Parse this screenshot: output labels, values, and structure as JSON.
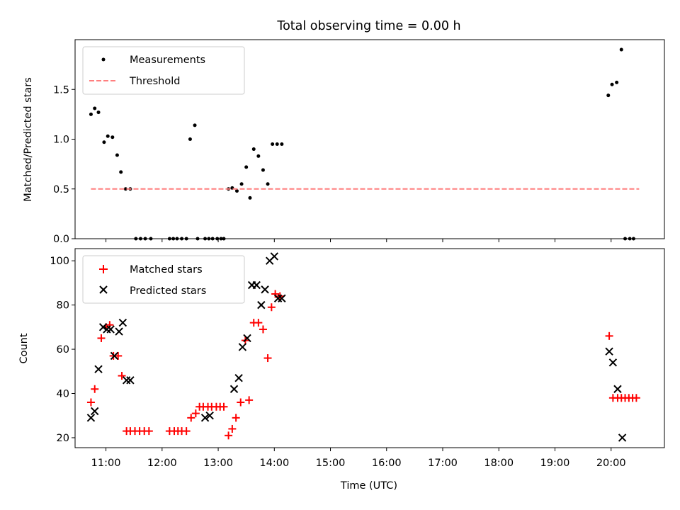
{
  "chart_data": [
    {
      "type": "scatter",
      "title": "Total observing time = 0.00 h",
      "ylabel": "Matched/Predicted stars",
      "xlabel": "",
      "xlim": [
        "10:27",
        "20:57"
      ],
      "ylim": [
        0,
        2.0
      ],
      "yticks": [
        0.0,
        0.5,
        1.0,
        1.5
      ],
      "ytick_labels": [
        "0.0",
        "0.5",
        "1.0",
        "1.5"
      ],
      "legend": "top-left",
      "grid": false,
      "series": [
        {
          "name": "Measurements",
          "kind": "scatter",
          "marker": "dot",
          "color": "#000000",
          "x": [
            "10:44",
            "10:48",
            "10:52",
            "10:58",
            "11:02",
            "11:07",
            "11:12",
            "11:16",
            "11:21",
            "11:26",
            "11:32",
            "11:37",
            "11:42",
            "11:48",
            "12:08",
            "12:12",
            "12:16",
            "12:21",
            "12:26",
            "12:30",
            "12:35",
            "12:38",
            "12:46",
            "12:50",
            "12:54",
            "12:59",
            "13:03",
            "13:06",
            "13:11",
            "13:15",
            "13:20",
            "13:25",
            "13:30",
            "13:34",
            "13:38",
            "13:43",
            "13:48",
            "13:53",
            "13:58",
            "14:03",
            "14:08",
            "19:57",
            "20:01",
            "20:06",
            "20:11",
            "20:15",
            "20:20",
            "20:24"
          ],
          "y": [
            1.25,
            1.31,
            1.27,
            0.97,
            1.03,
            1.02,
            0.84,
            0.67,
            0.5,
            0.5,
            0.0,
            0.0,
            0.0,
            0.0,
            0.0,
            0.0,
            0.0,
            0.0,
            0.0,
            1.0,
            1.14,
            0.0,
            0.0,
            0.0,
            0.0,
            0.0,
            0.0,
            0.0,
            0.5,
            0.51,
            0.48,
            0.55,
            0.72,
            0.41,
            0.9,
            0.83,
            0.69,
            0.55,
            0.95,
            0.95,
            0.95,
            1.44,
            1.55,
            1.57,
            1.9,
            0.0,
            0.0,
            0.0
          ]
        },
        {
          "name": "Threshold",
          "kind": "line",
          "dashed": true,
          "color": "#ff7f7f",
          "x": [
            "10:44",
            "20:30"
          ],
          "y": [
            0.5,
            0.5
          ]
        }
      ]
    },
    {
      "type": "scatter",
      "title": "",
      "ylabel": "Count",
      "xlabel": "Time (UTC)",
      "xlim": [
        "10:27",
        "20:57"
      ],
      "ylim": [
        15.5,
        105.5
      ],
      "yticks": [
        20,
        40,
        60,
        80,
        100
      ],
      "ytick_labels": [
        "20",
        "40",
        "60",
        "80",
        "100"
      ],
      "xticks": [
        "11:00",
        "12:00",
        "13:00",
        "14:00",
        "15:00",
        "16:00",
        "17:00",
        "18:00",
        "19:00",
        "20:00"
      ],
      "xtick_labels": [
        "11:00",
        "12:00",
        "13:00",
        "14:00",
        "15:00",
        "16:00",
        "17:00",
        "18:00",
        "19:00",
        "20:00"
      ],
      "legend": "top-left",
      "grid": false,
      "series": [
        {
          "name": "Matched stars",
          "kind": "scatter",
          "marker": "plus",
          "color": "#ff0000",
          "x": [
            "10:44",
            "10:48",
            "10:55",
            "11:00",
            "11:04",
            "11:08",
            "11:13",
            "11:17",
            "11:22",
            "11:26",
            "11:31",
            "11:36",
            "11:41",
            "11:46",
            "12:08",
            "12:13",
            "12:17",
            "12:21",
            "12:26",
            "12:31",
            "12:36",
            "12:40",
            "12:44",
            "12:49",
            "12:53",
            "12:58",
            "13:02",
            "13:06",
            "13:11",
            "13:15",
            "13:19",
            "13:24",
            "13:29",
            "13:33",
            "13:38",
            "13:43",
            "13:48",
            "13:53",
            "13:57",
            "14:01",
            "14:06",
            "19:58",
            "20:02",
            "20:07",
            "20:11",
            "20:15",
            "20:19",
            "20:23",
            "20:27"
          ],
          "y": [
            36,
            42,
            65,
            70,
            71,
            57,
            57,
            48,
            23,
            23,
            23,
            23,
            23,
            23,
            23,
            23,
            23,
            23,
            23,
            29,
            31,
            34,
            34,
            34,
            34,
            34,
            34,
            34,
            21,
            24,
            29,
            36,
            64,
            37,
            72,
            72,
            69,
            56,
            79,
            85,
            84,
            66,
            38,
            38,
            38,
            38,
            38,
            38,
            38
          ]
        },
        {
          "name": "Predicted stars",
          "kind": "scatter",
          "marker": "x",
          "color": "#000000",
          "x": [
            "10:44",
            "10:48",
            "10:52",
            "10:57",
            "11:01",
            "11:05",
            "11:09",
            "11:14",
            "11:18",
            "11:22",
            "11:26",
            "12:46",
            "12:51",
            "13:17",
            "13:22",
            "13:26",
            "13:31",
            "13:36",
            "13:41",
            "13:46",
            "13:50",
            "13:55",
            "14:00",
            "14:04",
            "14:08",
            "19:58",
            "20:02",
            "20:07",
            "20:12"
          ],
          "y": [
            29,
            32,
            51,
            70,
            69,
            69,
            57,
            68,
            72,
            46,
            46,
            29,
            30,
            42,
            47,
            61,
            65,
            89,
            89,
            80,
            87,
            100,
            102,
            83,
            83,
            59,
            54,
            42,
            20
          ]
        }
      ]
    }
  ]
}
